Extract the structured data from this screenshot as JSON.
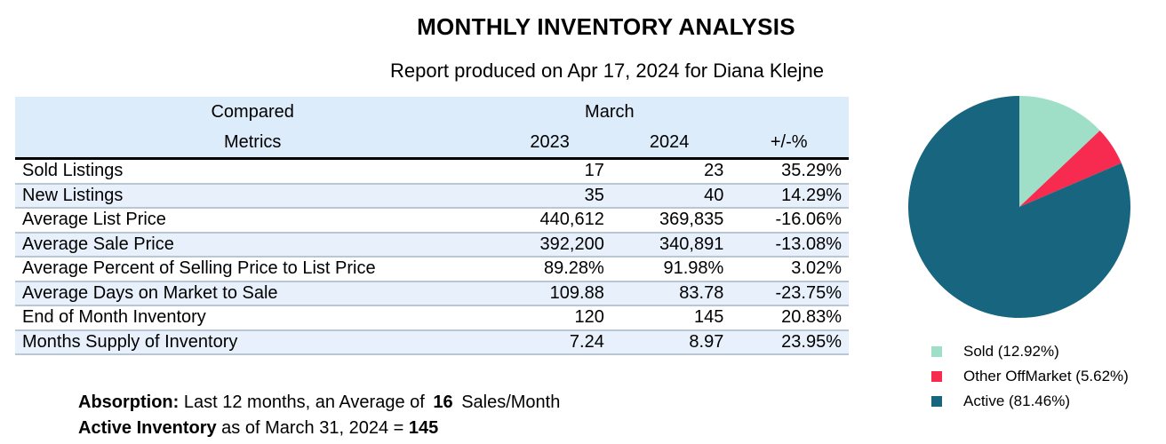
{
  "report": {
    "title": "MONTHLY INVENTORY ANALYSIS",
    "subtitle": "Report produced on Apr 17, 2024 for Diana Klejne"
  },
  "table": {
    "header_compared": "Compared",
    "header_month": "March",
    "header_metrics": "Metrics",
    "header_2023": "2023",
    "header_2024": "2024",
    "header_change": "+/-%",
    "rows": [
      {
        "metric": "Sold Listings",
        "y2023": "17",
        "y2024": "23",
        "change": "35.29%"
      },
      {
        "metric": "New Listings",
        "y2023": "35",
        "y2024": "40",
        "change": "14.29%"
      },
      {
        "metric": "Average List Price",
        "y2023": "440,612",
        "y2024": "369,835",
        "change": "-16.06%"
      },
      {
        "metric": "Average Sale Price",
        "y2023": "392,200",
        "y2024": "340,891",
        "change": "-13.08%"
      },
      {
        "metric": "Average Percent of Selling Price to List Price",
        "y2023": "89.28%",
        "y2024": "91.98%",
        "change": "3.02%"
      },
      {
        "metric": "Average Days on Market to Sale",
        "y2023": "109.88",
        "y2024": "83.78",
        "change": "-23.75%"
      },
      {
        "metric": "End of Month Inventory",
        "y2023": "120",
        "y2024": "145",
        "change": "20.83%"
      },
      {
        "metric": "Months Supply of Inventory",
        "y2023": "7.24",
        "y2024": "8.97",
        "change": "23.95%"
      }
    ]
  },
  "absorption": {
    "label": "Absorption:",
    "text1": "Last 12 months, an Average of",
    "value": "16",
    "text2": "Sales/Month"
  },
  "active_inventory": {
    "label": "Active Inventory",
    "text": "as of March 31, 2024 =",
    "value": "145"
  },
  "chart_data": {
    "type": "pie",
    "title": "",
    "slices": [
      {
        "label": "Sold (12.92%)",
        "value": 12.92,
        "color": "#9fdfc7"
      },
      {
        "label": "Other OffMarket (5.62%)",
        "value": 5.62,
        "color": "#f72a50"
      },
      {
        "label": "Active (81.46%)",
        "value": 81.46,
        "color": "#17657f"
      }
    ],
    "legend_placement": "bottom"
  }
}
